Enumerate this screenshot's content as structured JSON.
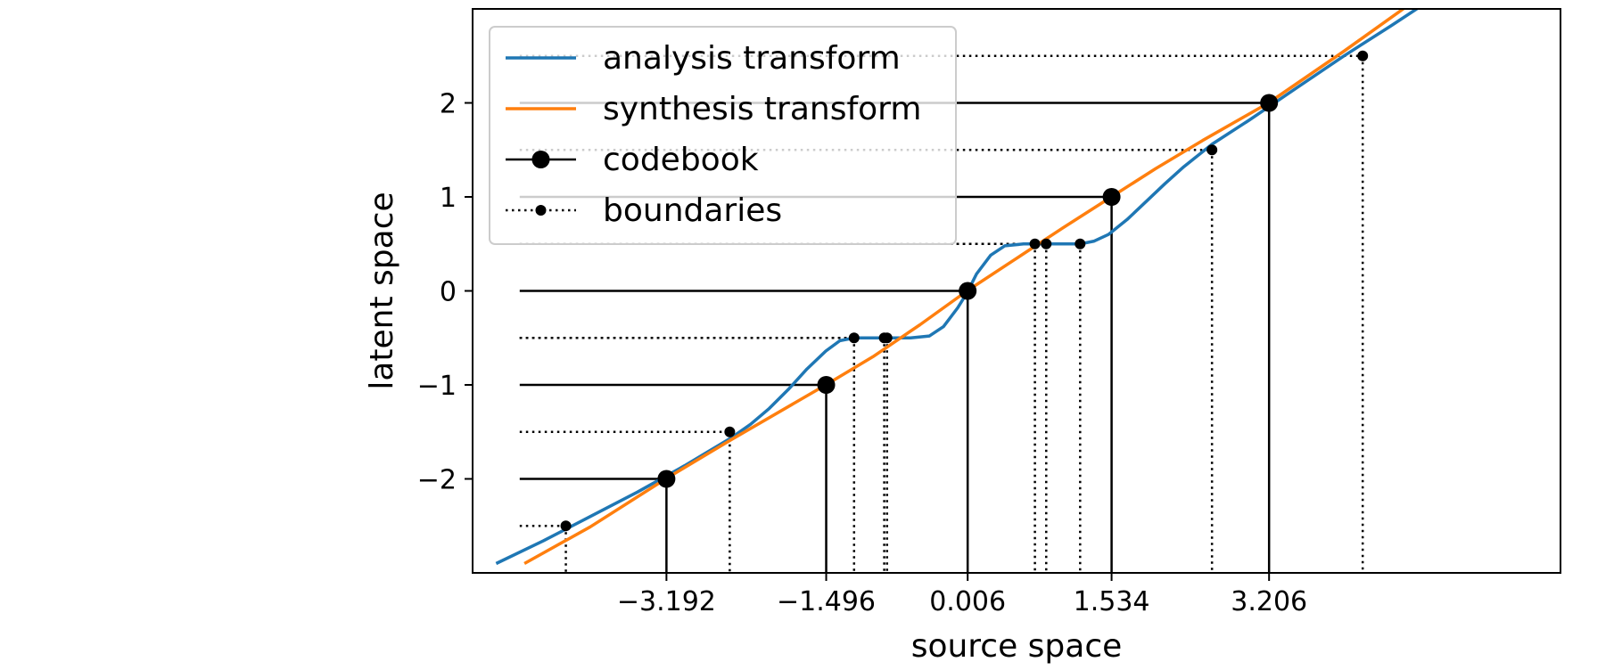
{
  "chart_data": {
    "type": "line",
    "title": "",
    "xlabel": "source space",
    "ylabel": "latent space",
    "xlim": [
      -5.25,
      6.3
    ],
    "ylim": [
      -3.0,
      3.0
    ],
    "grid": false,
    "legend_position": "top-left",
    "x_ticks": [
      {
        "value": -3.192,
        "label": "−3.192"
      },
      {
        "value": -1.496,
        "label": "−1.496"
      },
      {
        "value": 0.006,
        "label": "0.006"
      },
      {
        "value": 1.534,
        "label": "1.534"
      },
      {
        "value": 3.206,
        "label": "3.206"
      }
    ],
    "y_ticks": [
      {
        "value": -2,
        "label": "−2"
      },
      {
        "value": -1,
        "label": "−1"
      },
      {
        "value": 0,
        "label": "0"
      },
      {
        "value": 1,
        "label": "1"
      },
      {
        "value": 2,
        "label": "2"
      }
    ],
    "series": [
      {
        "name": "analysis transform",
        "color": "#1f77b4",
        "kind": "line",
        "points": [
          [
            -5.0,
            -2.9
          ],
          [
            -4.5,
            -2.66
          ],
          [
            -4.0,
            -2.4
          ],
          [
            -3.5,
            -2.14
          ],
          [
            -3.0,
            -1.86
          ],
          [
            -2.5,
            -1.56
          ],
          [
            -2.3,
            -1.42
          ],
          [
            -2.1,
            -1.25
          ],
          [
            -1.9,
            -1.05
          ],
          [
            -1.7,
            -0.83
          ],
          [
            -1.5,
            -0.64
          ],
          [
            -1.35,
            -0.53
          ],
          [
            -1.2,
            -0.5
          ],
          [
            -0.9,
            -0.5
          ],
          [
            -0.6,
            -0.5
          ],
          [
            -0.4,
            -0.48
          ],
          [
            -0.25,
            -0.38
          ],
          [
            -0.1,
            -0.18
          ],
          [
            0.0,
            -0.02
          ],
          [
            0.1,
            0.18
          ],
          [
            0.25,
            0.38
          ],
          [
            0.4,
            0.48
          ],
          [
            0.6,
            0.5
          ],
          [
            0.9,
            0.5
          ],
          [
            1.2,
            0.5
          ],
          [
            1.35,
            0.53
          ],
          [
            1.5,
            0.6
          ],
          [
            1.7,
            0.76
          ],
          [
            1.9,
            0.95
          ],
          [
            2.1,
            1.14
          ],
          [
            2.3,
            1.32
          ],
          [
            2.6,
            1.56
          ],
          [
            3.0,
            1.82
          ],
          [
            3.5,
            2.16
          ],
          [
            4.0,
            2.5
          ],
          [
            4.5,
            2.82
          ],
          [
            5.0,
            3.15
          ]
        ]
      },
      {
        "name": "synthesis transform",
        "color": "#ff7f0e",
        "kind": "line",
        "points": [
          [
            -4.7,
            -2.9
          ],
          [
            -4.0,
            -2.51
          ],
          [
            -3.2,
            -2.0
          ],
          [
            -2.5,
            -1.58
          ],
          [
            -1.5,
            -1.0
          ],
          [
            -1.0,
            -0.7
          ],
          [
            -0.5,
            -0.36
          ],
          [
            0.0,
            0.0
          ],
          [
            0.5,
            0.33
          ],
          [
            1.0,
            0.66
          ],
          [
            1.5,
            0.98
          ],
          [
            2.0,
            1.3
          ],
          [
            2.5,
            1.6
          ],
          [
            3.2,
            2.0
          ],
          [
            4.0,
            2.55
          ],
          [
            4.7,
            3.05
          ]
        ]
      },
      {
        "name": "codebook",
        "color": "#000000",
        "kind": "codebook",
        "points": [
          [
            -3.192,
            -2
          ],
          [
            -1.496,
            -1
          ],
          [
            0.006,
            0
          ],
          [
            1.534,
            1
          ],
          [
            3.206,
            2
          ]
        ]
      },
      {
        "name": "boundaries",
        "color": "#000000",
        "kind": "boundaries",
        "points": [
          [
            -4.26,
            -2.5
          ],
          [
            -2.52,
            -1.5
          ],
          [
            -1.2,
            -0.5
          ],
          [
            -0.88,
            -0.5
          ],
          [
            -0.85,
            -0.5
          ],
          [
            0.72,
            0.5
          ],
          [
            0.84,
            0.5
          ],
          [
            1.2,
            0.5
          ],
          [
            2.6,
            1.5
          ],
          [
            4.2,
            2.5
          ]
        ]
      }
    ],
    "reference_line_start_x": -4.75
  }
}
